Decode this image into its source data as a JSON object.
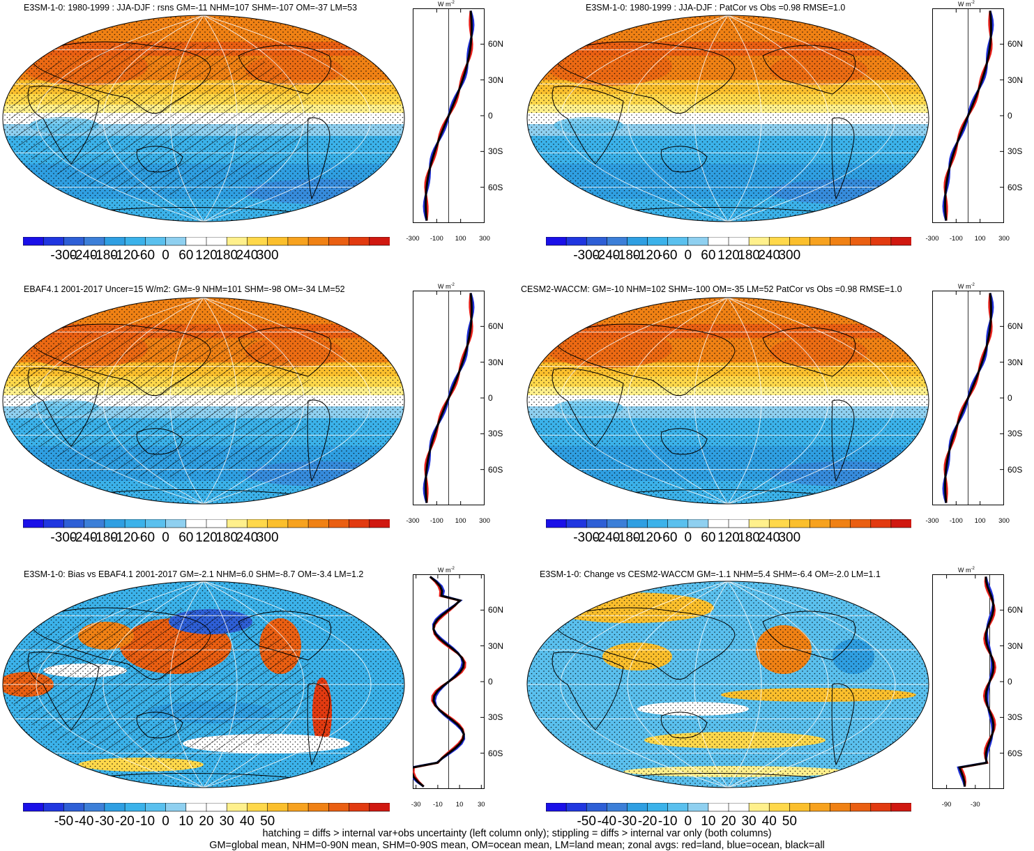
{
  "palette": [
    "#1a10e8",
    "#2036e0",
    "#2e5fd6",
    "#3c7fd8",
    "#2f9fe2",
    "#3bb2ea",
    "#5ac0ee",
    "#8fd0f0",
    "#ffffff",
    "#ffffff",
    "#fff08c",
    "#ffd84a",
    "#fbbf2c",
    "#f7a21f",
    "#f08114",
    "#ea5f12",
    "#e23a10",
    "#d01810"
  ],
  "coast_color": "#000000",
  "panels": [
    {
      "id": "e3sm-climatology",
      "title": "E3SM-1-0: 1980-1999 : JJA-DJF : rsns GM=-11 NHM=107 SHM=-107 OM=-37 LM=53",
      "map_kind": "climatology",
      "hatched": true,
      "cbar_labels": [
        "-300",
        "-240",
        "-180",
        "-120",
        "-60",
        "0",
        "60",
        "120",
        "180",
        "240",
        "300"
      ],
      "zonal_units": "W m",
      "zonal_units_sup": "-2",
      "zonal_lat_labels": [
        "60N",
        "30N",
        "0",
        "30S",
        "60S"
      ],
      "zonal_x_labels": [
        "-300",
        "-100",
        "100",
        "300"
      ],
      "zonal_x_values": [
        -300,
        -100,
        100,
        300
      ],
      "zonal_xlim": [
        -300,
        300
      ]
    },
    {
      "id": "e3sm-patcor",
      "title": "E3SM-1-0: 1980-1999 : JJA-DJF : PatCor vs Obs =0.98 RMSE=1.0",
      "map_kind": "climatology",
      "hatched": false,
      "cbar_labels": [
        "-300",
        "-240",
        "-180",
        "-120",
        "-60",
        "0",
        "60",
        "120",
        "180",
        "240",
        "300"
      ],
      "zonal_units": "W m",
      "zonal_units_sup": "-2",
      "zonal_lat_labels": [
        "60N",
        "30N",
        "0",
        "30S",
        "60S"
      ],
      "zonal_x_labels": [
        "-300",
        "-100",
        "100",
        "300"
      ],
      "zonal_x_values": [
        -300,
        -100,
        100,
        300
      ],
      "zonal_xlim": [
        -300,
        300
      ]
    },
    {
      "id": "ebaf-obs",
      "title": "EBAF4.1 2001-2017 Uncer=15 W/m2: GM=-9 NHM=101 SHM=-98 OM=-34 LM=52",
      "map_kind": "climatology",
      "hatched": true,
      "cbar_labels": [
        "-300",
        "-240",
        "-180",
        "-120",
        "-60",
        "0",
        "60",
        "120",
        "180",
        "240",
        "300"
      ],
      "zonal_units": "W m",
      "zonal_units_sup": "-2",
      "zonal_lat_labels": [
        "60N",
        "30N",
        "0",
        "30S",
        "60S"
      ],
      "zonal_x_labels": [
        "-300",
        "-100",
        "100",
        "300"
      ],
      "zonal_x_values": [
        -300,
        -100,
        100,
        300
      ],
      "zonal_xlim": [
        -300,
        300
      ]
    },
    {
      "id": "cesm2-waccm",
      "title": "CESM2-WACCM: GM=-10 NHM=102 SHM=-100 OM=-35 LM=52 PatCor vs Obs =0.98 RMSE=1.0",
      "map_kind": "climatology",
      "hatched": false,
      "cbar_labels": [
        "-300",
        "-240",
        "-180",
        "-120",
        "-60",
        "0",
        "60",
        "120",
        "180",
        "240",
        "300"
      ],
      "zonal_units": "W m",
      "zonal_units_sup": "-2",
      "zonal_lat_labels": [
        "60N",
        "30N",
        "0",
        "30S",
        "60S"
      ],
      "zonal_x_labels": [
        "-300",
        "-100",
        "100",
        "300"
      ],
      "zonal_x_values": [
        -300,
        -100,
        100,
        300
      ],
      "zonal_xlim": [
        -300,
        300
      ]
    },
    {
      "id": "e3sm-bias",
      "title": "E3SM-1-0: Bias vs EBAF4.1 2001-2017 GM=-2.1 NHM=6.0 SHM=-8.7 OM=-3.4 LM=1.2",
      "map_kind": "bias",
      "hatched": true,
      "cbar_labels": [
        "-50",
        "-40",
        "-30",
        "-20",
        "-10",
        "0",
        "10",
        "20",
        "30",
        "40",
        "50"
      ],
      "zonal_units": "W m",
      "zonal_units_sup": "-2",
      "zonal_lat_labels": [
        "60N",
        "30N",
        "0",
        "30S",
        "60S"
      ],
      "zonal_x_labels": [
        "-30",
        "-10",
        "10",
        "30"
      ],
      "zonal_x_values": [
        -30,
        -10,
        10,
        30
      ],
      "zonal_xlim": [
        -33,
        33
      ]
    },
    {
      "id": "e3sm-change",
      "title": "E3SM-1-0: Change vs CESM2-WACCM GM=-1.1 NHM=5.4 SHM=-6.4 OM=-2.0 LM=1.1",
      "map_kind": "change",
      "hatched": false,
      "cbar_labels": [
        "-50",
        "-40",
        "-30",
        "-20",
        "-10",
        "0",
        "10",
        "20",
        "30",
        "40",
        "50"
      ],
      "zonal_units": "W m",
      "zonal_units_sup": "-2",
      "zonal_lat_labels": [
        "60N",
        "30N",
        "0",
        "30S",
        "60S"
      ],
      "zonal_x_labels": [
        "-90",
        "-30"
      ],
      "zonal_x_values": [
        -90,
        -30
      ],
      "zonal_xlim": [
        -120,
        30
      ]
    }
  ],
  "footer": {
    "line1": "hatching = diffs > internal var+obs uncertainty (left column only); stippling = diffs > internal var only (both columns)",
    "line2": "GM=global mean, NHM=0-90N mean, SHM=0-90S mean, OM=ocean mean, LM=land mean; zonal avgs: red=land, blue=ocean, black=all"
  }
}
